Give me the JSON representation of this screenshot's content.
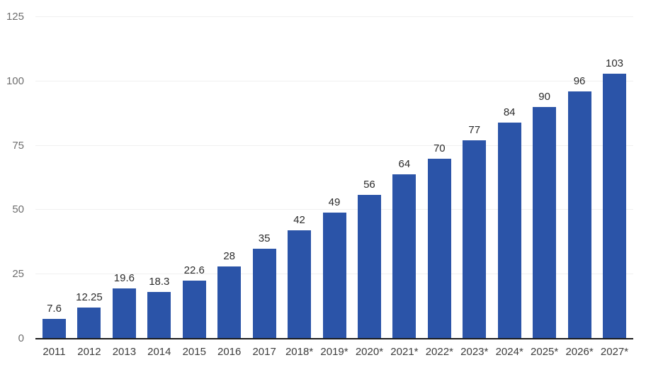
{
  "chart_data": {
    "type": "bar",
    "title": "",
    "xlabel": "",
    "ylabel": "",
    "categories": [
      "2011",
      "2012",
      "2013",
      "2014",
      "2015",
      "2016",
      "2017",
      "2018*",
      "2019*",
      "2020*",
      "2021*",
      "2022*",
      "2023*",
      "2024*",
      "2025*",
      "2026*",
      "2027*"
    ],
    "values": [
      7.6,
      12.25,
      19.6,
      18.3,
      22.6,
      28,
      35,
      42,
      49,
      56,
      64,
      70,
      77,
      84,
      90,
      96,
      103
    ],
    "value_labels": [
      "7.6",
      "12.25",
      "19.6",
      "18.3",
      "22.6",
      "28",
      "35",
      "42",
      "49",
      "56",
      "64",
      "70",
      "77",
      "84",
      "90",
      "96",
      "103"
    ],
    "y_ticks": [
      0,
      25,
      50,
      75,
      100,
      125
    ],
    "ylim": [
      0,
      125
    ],
    "grid": true,
    "legend": "none",
    "bar_color": "#2b54a8",
    "value_label_color": "#2b2b2b",
    "x_tick_color": "#3c3c3c",
    "y_tick_color": "#6e6e6e",
    "axis_line_color": "#1c1c1c",
    "background_color": "#ffffff"
  }
}
